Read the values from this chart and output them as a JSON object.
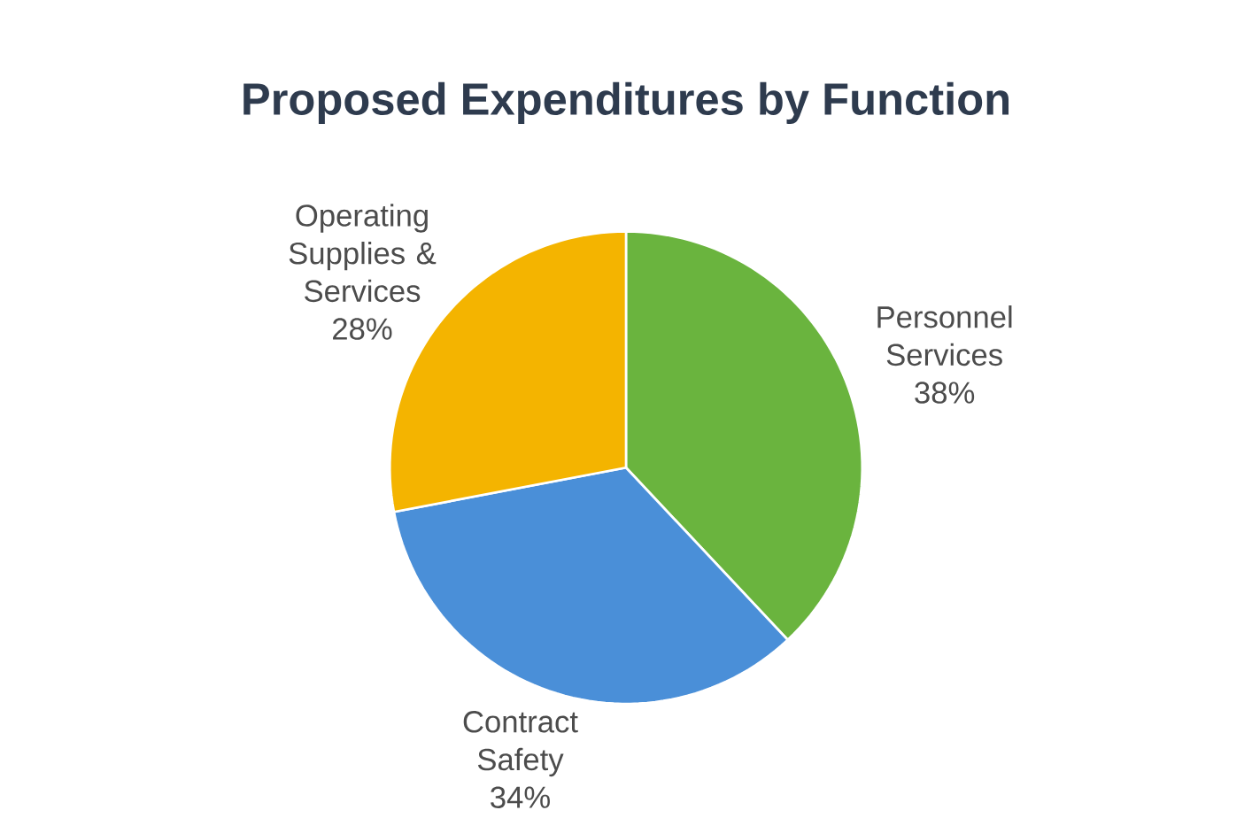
{
  "chart_data": {
    "type": "pie",
    "title": "Proposed Expenditures by Function",
    "categories": [
      "Personnel Services",
      "Contract Safety",
      "Operating Supplies & Services"
    ],
    "values": [
      38,
      34,
      28
    ],
    "value_labels": [
      "38%",
      "34%",
      "28%"
    ],
    "colors": [
      "#6ab43e",
      "#4a8fd8",
      "#f4b400"
    ]
  }
}
